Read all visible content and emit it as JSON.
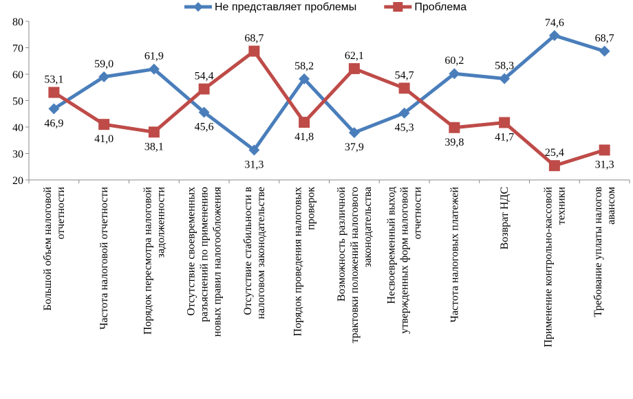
{
  "chart_data": {
    "type": "line",
    "categories": [
      "Большой объем налоговой\nотчетности",
      "Частота налоговой отчетности",
      "Порядок пересмотра налоговой\nзадолженности",
      "Отсутствие своевременных\nразъяснений по применению\nновых правил налогообложения",
      "Отсутствие стабильности в\nналоговом законодательстве",
      "Порядок проведения налоговых\nпроверок",
      "Возможность различной\nтрактовки положений налогового\nзаконодательства",
      "Несвоевременный выход\nутвержденных форм налоговой\nотчетности",
      "Частота налоговых платежей",
      "Возврат НДС",
      "Применение контрольно-кассовой\nтехники",
      "Требование уплаты налогов\nавансом"
    ],
    "series": [
      {
        "name": "Не представляет проблемы",
        "color": "#4a7ebb",
        "marker": "diamond",
        "values": [
          46.9,
          59.0,
          61.9,
          45.6,
          31.3,
          58.2,
          37.9,
          45.3,
          60.2,
          58.3,
          74.6,
          68.7
        ],
        "value_labels": [
          "46,9",
          "59,0",
          "61,9",
          "45,6",
          "31,3",
          "58,2",
          "37,9",
          "45,3",
          "60,2",
          "58,3",
          "74,6",
          "68,7"
        ]
      },
      {
        "name": "Проблема",
        "color": "#be4b48",
        "marker": "square",
        "values": [
          53.1,
          41.0,
          38.1,
          54.4,
          68.7,
          41.8,
          62.1,
          54.7,
          39.8,
          41.7,
          25.4,
          31.3
        ],
        "value_labels": [
          "53,1",
          "41,0",
          "38,1",
          "54,4",
          "68,7",
          "41,8",
          "62,1",
          "54,7",
          "39,8",
          "41,7",
          "25,4",
          "31,3"
        ]
      }
    ],
    "ylim": [
      20,
      80
    ],
    "yticks": [
      20,
      30,
      40,
      50,
      60,
      70,
      80
    ],
    "grid": false,
    "legend": "top"
  }
}
